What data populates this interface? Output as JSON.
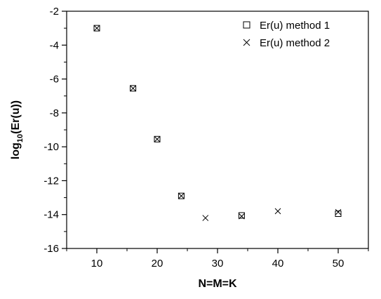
{
  "chart_data": {
    "type": "scatter",
    "title": "",
    "xlabel": "N=M=K",
    "ylabel_main": "log",
    "ylabel_sub": "10",
    "ylabel_tail": "(Er(u))",
    "xlim": [
      5,
      55
    ],
    "ylim": [
      -16,
      -2
    ],
    "xticks": [
      10,
      20,
      30,
      40,
      50
    ],
    "yticks": [
      -16,
      -14,
      -12,
      -10,
      -8,
      -6,
      -4,
      -2
    ],
    "grid": false,
    "legend_position": "top-right",
    "series": [
      {
        "name": "Er(u) method 1",
        "marker": "square",
        "x": [
          10,
          16,
          20,
          24,
          34,
          50
        ],
        "y": [
          -3.0,
          -6.55,
          -9.55,
          -12.9,
          -14.05,
          -13.95
        ]
      },
      {
        "name": "Er(u) method 2",
        "marker": "cross",
        "x": [
          10,
          16,
          20,
          24,
          28,
          34,
          40,
          50
        ],
        "y": [
          -3.0,
          -6.55,
          -9.55,
          -12.9,
          -14.2,
          -14.1,
          -13.8,
          -13.85
        ]
      }
    ]
  }
}
